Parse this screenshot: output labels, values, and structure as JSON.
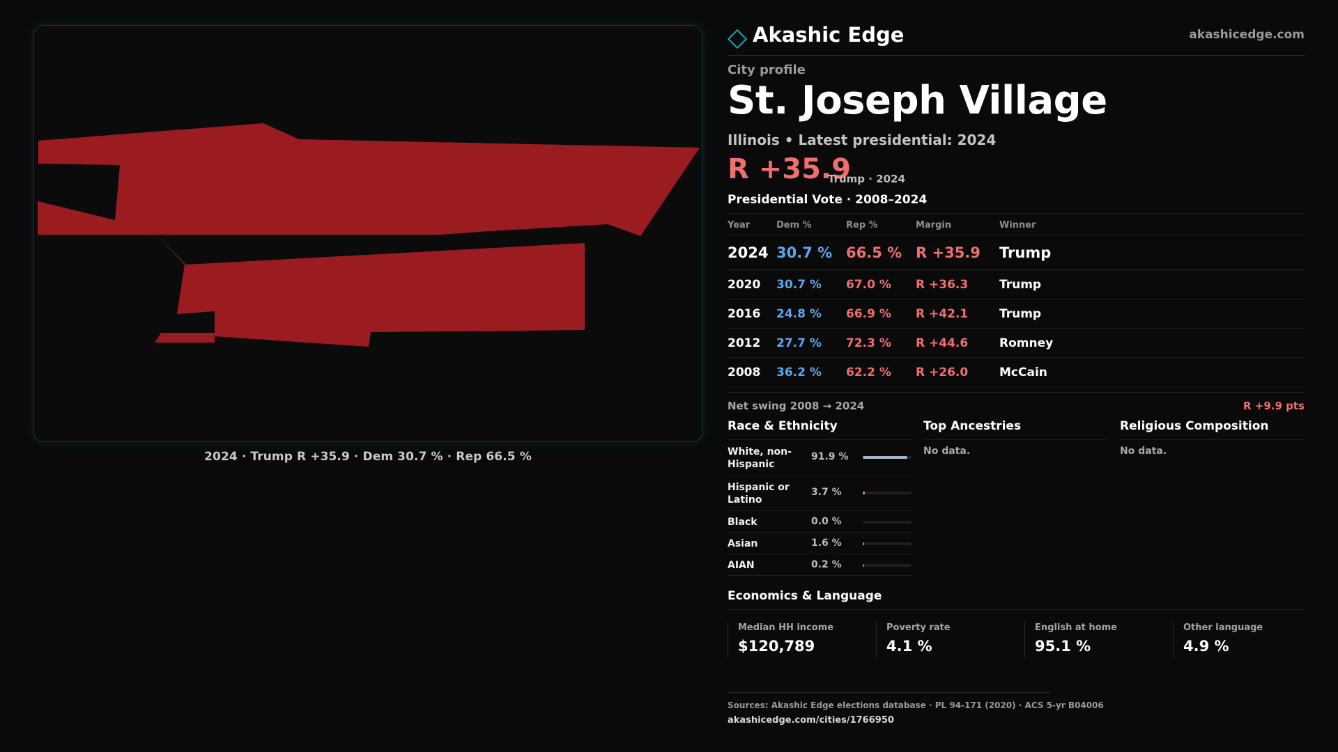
{
  "map": {
    "fill_color": "#9b1c20",
    "caption": "2024 · Trump R +35.9 · Dem 30.7 % · Rep 66.5 %"
  },
  "brand": {
    "name": "Akashic Edge",
    "url": "akashicedge.com",
    "accent": "#19a7bd"
  },
  "profile": {
    "kicker": "City profile",
    "name": "St. Joseph Village",
    "subtitle": "Illinois • Latest presidential: 2024",
    "headline_margin": "R +35.9",
    "headline_note": "Trump · 2024"
  },
  "vote": {
    "title": "Presidential Vote · 2008–2024",
    "headers": {
      "year": "Year",
      "dem": "Dem %",
      "rep": "Rep %",
      "margin": "Margin",
      "winner": "Winner"
    },
    "rows": [
      {
        "year": "2024",
        "dem": "30.7 %",
        "rep": "66.5 %",
        "margin": "R +35.9",
        "winner": "Trump"
      },
      {
        "year": "2020",
        "dem": "30.7 %",
        "rep": "67.0 %",
        "margin": "R +36.3",
        "winner": "Trump"
      },
      {
        "year": "2016",
        "dem": "24.8 %",
        "rep": "66.9 %",
        "margin": "R +42.1",
        "winner": "Trump"
      },
      {
        "year": "2012",
        "dem": "27.7 %",
        "rep": "72.3 %",
        "margin": "R +44.6",
        "winner": "Romney"
      },
      {
        "year": "2008",
        "dem": "36.2 %",
        "rep": "62.2 %",
        "margin": "R +26.0",
        "winner": "McCain"
      }
    ],
    "swing_label": "Net swing 2008 → 2024",
    "swing_value": "R +9.9 pts",
    "colors": {
      "dem": "#5aa7f0",
      "rep": "#ef6f6f"
    }
  },
  "race": {
    "title": "Race & Ethnicity",
    "rows": [
      {
        "label": "White, non-Hispanic",
        "pct": "91.9 %",
        "share": 0.919,
        "color": "#a9b4c8"
      },
      {
        "label": "Hispanic or Latino",
        "pct": "3.7 %",
        "share": 0.037,
        "color": "#e0a43a"
      },
      {
        "label": "Black",
        "pct": "0.0 %",
        "share": 0.0,
        "color": "#8c6bd6"
      },
      {
        "label": "Asian",
        "pct": "1.6 %",
        "share": 0.016,
        "color": "#4fc0b0"
      },
      {
        "label": "AIAN",
        "pct": "0.2 %",
        "share": 0.002,
        "color": "#c06a6a"
      }
    ]
  },
  "ancestries": {
    "title": "Top Ancestries",
    "empty": "No data."
  },
  "religion": {
    "title": "Religious Composition",
    "empty": "No data."
  },
  "economics": {
    "title": "Economics & Language",
    "cards": [
      {
        "label": "Median HH income",
        "value": "$120,789"
      },
      {
        "label": "Poverty rate",
        "value": "4.1 %"
      },
      {
        "label": "English at home",
        "value": "95.1 %"
      },
      {
        "label": "Other language",
        "value": "4.9 %"
      }
    ]
  },
  "footer": {
    "sources": "Sources: Akashic Edge elections database · PL 94-171 (2020) · ACS 5-yr B04006",
    "url": "akashicedge.com/cities/1766950"
  }
}
